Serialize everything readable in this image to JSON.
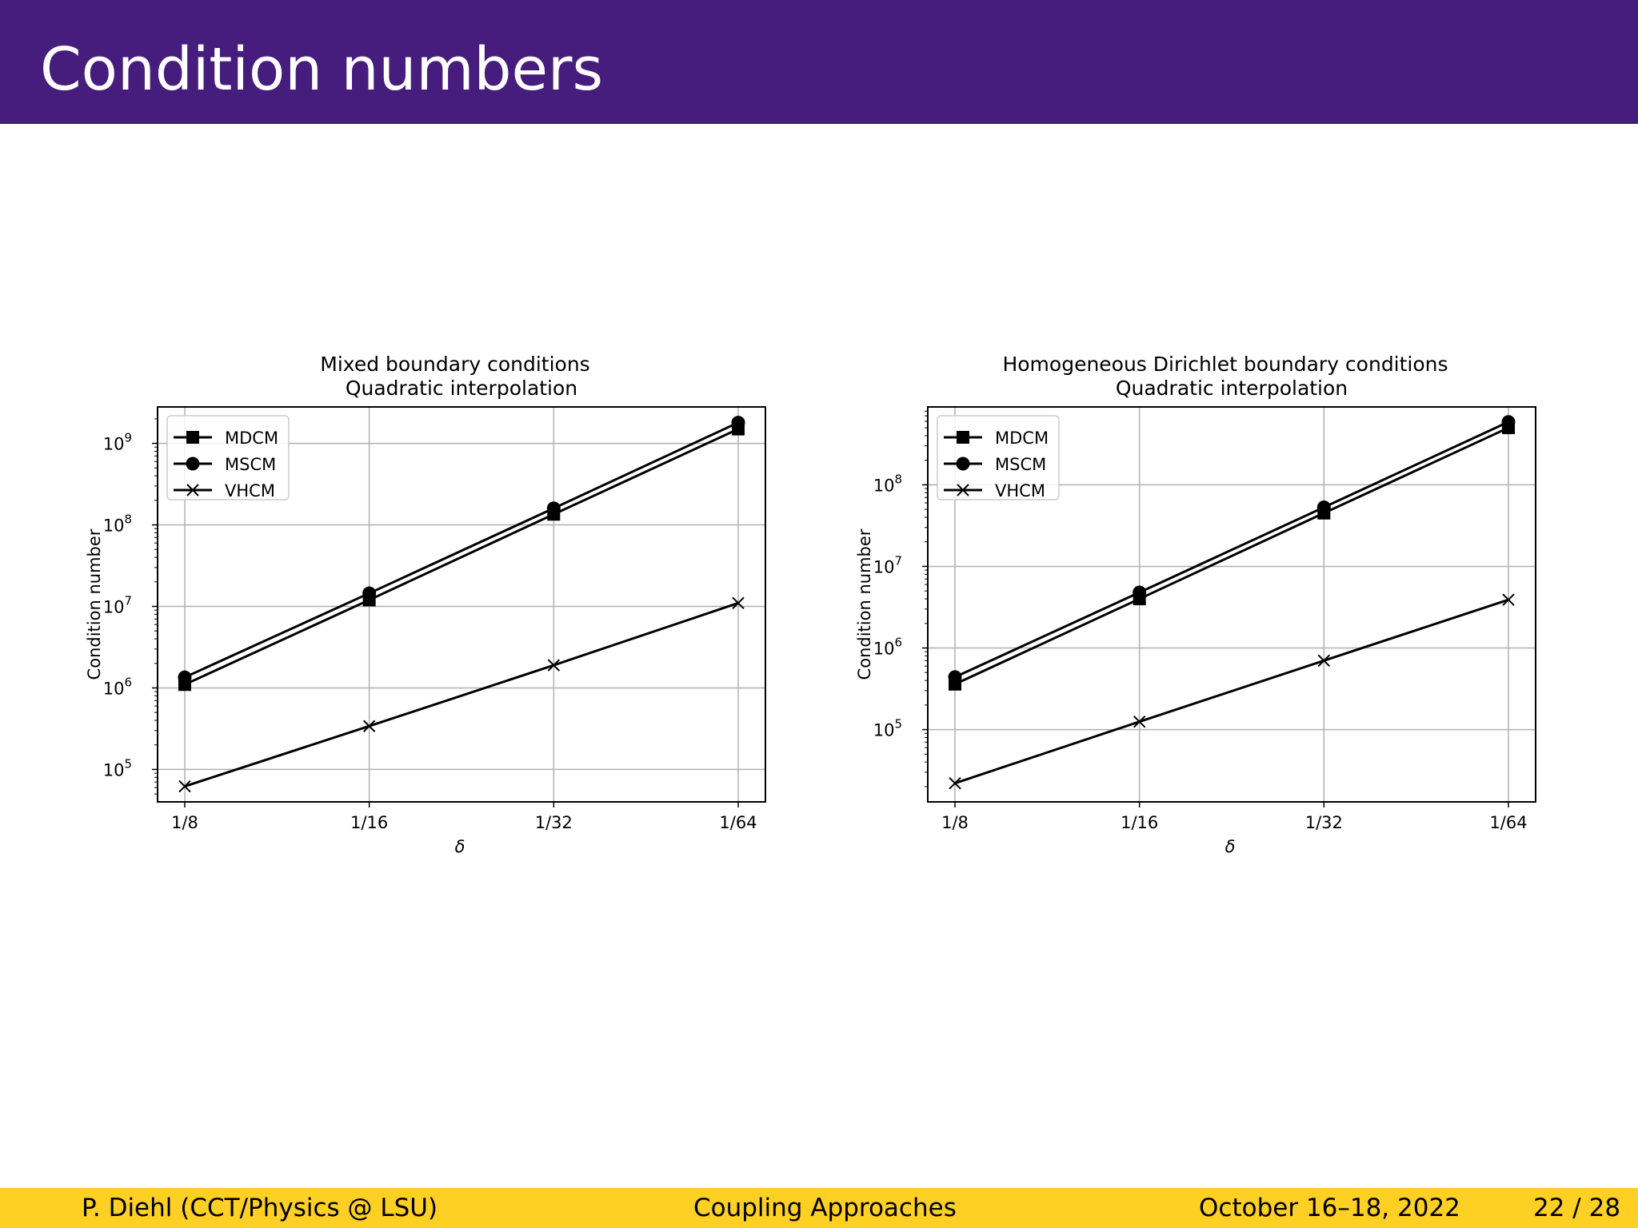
{
  "slide": {
    "title": "Condition numbers",
    "footer_author": "P. Diehl  (CCT/Physics @ LSU)",
    "footer_talk": "Coupling Approaches",
    "footer_date": "October 16–18, 2022",
    "footer_page": "22 / 28"
  },
  "colors": {
    "header": "#461d7c",
    "footer": "#fdd023",
    "series": "#000000",
    "grid": "#b0b0b0"
  },
  "chart_data": [
    {
      "type": "line",
      "title": "Mixed boundary conditions",
      "subtitle": "Quadratic interpolation",
      "xlabel": "δ",
      "ylabel": "Condition number",
      "categories": [
        "1/8",
        "1/16",
        "1/32",
        "1/64"
      ],
      "yscale": "log",
      "ylim": [
        40000,
        2800000000
      ],
      "yticks": [
        100000,
        1000000,
        10000000,
        100000000,
        1000000000
      ],
      "ytick_labels": [
        [
          "10",
          "5"
        ],
        [
          "10",
          "6"
        ],
        [
          "10",
          "7"
        ],
        [
          "10",
          "8"
        ],
        [
          "10",
          "9"
        ]
      ],
      "grid": true,
      "legend_position": "upper-left",
      "series": [
        {
          "name": "MDCM",
          "marker": "square",
          "values": [
            1100000,
            12000000,
            135000000,
            1500000000
          ]
        },
        {
          "name": "MSCM",
          "marker": "circle",
          "values": [
            1350000,
            14500000,
            160000000,
            1800000000
          ]
        },
        {
          "name": "VHCM",
          "marker": "x",
          "values": [
            62000,
            340000,
            1900000,
            11000000
          ]
        }
      ]
    },
    {
      "type": "line",
      "title": "Homogeneous Dirichlet boundary conditions",
      "subtitle": "Quadratic interpolation",
      "xlabel": "δ",
      "ylabel": "Condition number",
      "categories": [
        "1/8",
        "1/16",
        "1/32",
        "1/64"
      ],
      "yscale": "log",
      "ylim": [
        13000,
        900000000
      ],
      "yticks": [
        100000,
        1000000,
        10000000,
        100000000
      ],
      "ytick_labels": [
        [
          "10",
          "5"
        ],
        [
          "10",
          "6"
        ],
        [
          "10",
          "7"
        ],
        [
          "10",
          "8"
        ]
      ],
      "grid": true,
      "legend_position": "upper-left",
      "series": [
        {
          "name": "MDCM",
          "marker": "square",
          "values": [
            360000,
            4000000,
            45000000,
            500000000
          ]
        },
        {
          "name": "MSCM",
          "marker": "circle",
          "values": [
            440000,
            4800000,
            53000000,
            590000000
          ]
        },
        {
          "name": "VHCM",
          "marker": "x",
          "values": [
            22000,
            125000,
            700000,
            3900000
          ]
        }
      ]
    }
  ]
}
